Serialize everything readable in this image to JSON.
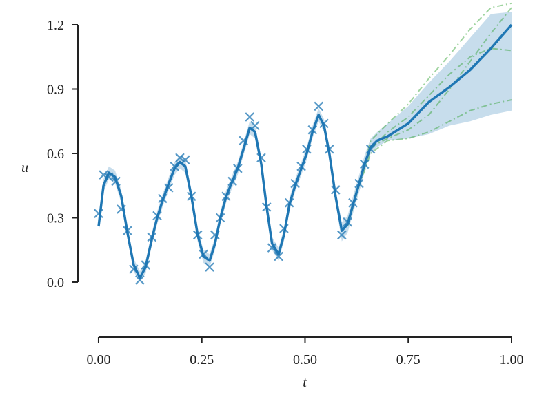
{
  "chart_data": {
    "type": "line",
    "xlabel": "t",
    "ylabel": "u",
    "xlim": [
      -0.05,
      1.0
    ],
    "ylim": [
      -0.26,
      1.26
    ],
    "xticks": [
      {
        "value": 0,
        "label": "0.00"
      },
      {
        "value": 0.25,
        "label": "0.25"
      },
      {
        "value": 0.5,
        "label": "0.50"
      },
      {
        "value": 0.75,
        "label": "0.75"
      },
      {
        "value": 1,
        "label": "1.00"
      }
    ],
    "yticks": [
      {
        "value": 0,
        "label": "0.0"
      },
      {
        "value": 0.3,
        "label": "0.3"
      },
      {
        "value": 0.6,
        "label": "0.6"
      },
      {
        "value": 0.9,
        "label": "0.9"
      },
      {
        "value": 1.2,
        "label": "1.2"
      }
    ],
    "x": [
      0,
      0.012,
      0.025,
      0.04,
      0.055,
      0.07,
      0.085,
      0.1,
      0.114,
      0.129,
      0.142,
      0.155,
      0.17,
      0.184,
      0.197,
      0.21,
      0.225,
      0.24,
      0.254,
      0.269,
      0.282,
      0.295,
      0.309,
      0.324,
      0.337,
      0.351,
      0.366,
      0.379,
      0.394,
      0.407,
      0.42,
      0.436,
      0.449,
      0.462,
      0.476,
      0.491,
      0.504,
      0.518,
      0.533,
      0.546,
      0.559,
      0.574,
      0.589,
      0.603,
      0.616,
      0.631,
      0.644,
      0.659,
      0.675,
      0.7,
      0.75,
      0.8,
      0.85,
      0.9,
      0.95,
      1.0
    ],
    "mean": {
      "color": "#1f77b4",
      "values": [
        0.26,
        0.45,
        0.51,
        0.49,
        0.4,
        0.23,
        0.08,
        0.02,
        0.07,
        0.2,
        0.3,
        0.38,
        0.46,
        0.53,
        0.56,
        0.54,
        0.4,
        0.22,
        0.12,
        0.1,
        0.18,
        0.3,
        0.4,
        0.47,
        0.53,
        0.62,
        0.72,
        0.7,
        0.55,
        0.35,
        0.18,
        0.13,
        0.22,
        0.36,
        0.45,
        0.53,
        0.6,
        0.7,
        0.78,
        0.73,
        0.6,
        0.4,
        0.24,
        0.27,
        0.36,
        0.46,
        0.55,
        0.63,
        0.66,
        0.68,
        0.74,
        0.84,
        0.91,
        0.99,
        1.09,
        1.2
      ]
    },
    "band": {
      "color": "#1f77b4",
      "lower": [
        0.22,
        0.42,
        0.48,
        0.46,
        0.37,
        0.2,
        0.05,
        0.0,
        0.04,
        0.17,
        0.27,
        0.35,
        0.43,
        0.5,
        0.53,
        0.51,
        0.37,
        0.19,
        0.09,
        0.07,
        0.15,
        0.27,
        0.37,
        0.44,
        0.5,
        0.59,
        0.69,
        0.67,
        0.52,
        0.32,
        0.15,
        0.1,
        0.19,
        0.33,
        0.42,
        0.5,
        0.57,
        0.67,
        0.75,
        0.7,
        0.57,
        0.37,
        0.19,
        0.23,
        0.32,
        0.42,
        0.51,
        0.6,
        0.63,
        0.66,
        0.67,
        0.69,
        0.73,
        0.75,
        0.78,
        0.8
      ],
      "upper": [
        0.3,
        0.48,
        0.54,
        0.52,
        0.43,
        0.26,
        0.11,
        0.05,
        0.1,
        0.23,
        0.33,
        0.41,
        0.49,
        0.56,
        0.59,
        0.57,
        0.43,
        0.25,
        0.15,
        0.13,
        0.21,
        0.33,
        0.43,
        0.5,
        0.56,
        0.65,
        0.75,
        0.73,
        0.58,
        0.38,
        0.21,
        0.16,
        0.25,
        0.39,
        0.48,
        0.56,
        0.63,
        0.73,
        0.81,
        0.76,
        0.63,
        0.43,
        0.28,
        0.31,
        0.4,
        0.5,
        0.59,
        0.67,
        0.7,
        0.74,
        0.82,
        0.93,
        1.03,
        1.14,
        1.25,
        1.26
      ]
    },
    "samples": {
      "color": "#2ca02c",
      "x": [
        0.603,
        0.631,
        0.659,
        0.7,
        0.75,
        0.8,
        0.85,
        0.9,
        0.95,
        1.0
      ],
      "series": [
        {
          "values": [
            0.26,
            0.45,
            0.66,
            0.74,
            0.83,
            0.95,
            1.06,
            1.18,
            1.28,
            1.3
          ]
        },
        {
          "values": [
            0.28,
            0.47,
            0.62,
            0.7,
            0.77,
            0.87,
            0.97,
            1.05,
            1.09,
            1.08
          ]
        },
        {
          "values": [
            0.28,
            0.46,
            0.63,
            0.67,
            0.71,
            0.78,
            0.9,
            1.03,
            1.16,
            1.28
          ]
        },
        {
          "values": [
            0.27,
            0.45,
            0.6,
            0.66,
            0.67,
            0.7,
            0.75,
            0.8,
            0.83,
            0.85
          ]
        }
      ]
    },
    "observations": {
      "color": "#1f77b4",
      "x": [
        0,
        0.012,
        0.025,
        0.042,
        0.055,
        0.07,
        0.085,
        0.1,
        0.114,
        0.129,
        0.142,
        0.155,
        0.17,
        0.184,
        0.197,
        0.21,
        0.225,
        0.24,
        0.254,
        0.269,
        0.282,
        0.295,
        0.309,
        0.324,
        0.337,
        0.351,
        0.366,
        0.379,
        0.394,
        0.407,
        0.42,
        0.436,
        0.449,
        0.462,
        0.476,
        0.491,
        0.504,
        0.518,
        0.533,
        0.546,
        0.559,
        0.574,
        0.589,
        0.603,
        0.616,
        0.631,
        0.644,
        0.659
      ],
      "values": [
        0.32,
        0.5,
        0.49,
        0.47,
        0.34,
        0.24,
        0.06,
        0.01,
        0.08,
        0.21,
        0.31,
        0.39,
        0.44,
        0.54,
        0.58,
        0.57,
        0.4,
        0.22,
        0.13,
        0.07,
        0.22,
        0.3,
        0.4,
        0.47,
        0.53,
        0.66,
        0.77,
        0.73,
        0.58,
        0.35,
        0.16,
        0.12,
        0.25,
        0.37,
        0.46,
        0.54,
        0.62,
        0.71,
        0.82,
        0.74,
        0.62,
        0.43,
        0.22,
        0.28,
        0.37,
        0.46,
        0.55,
        0.62
      ]
    }
  }
}
